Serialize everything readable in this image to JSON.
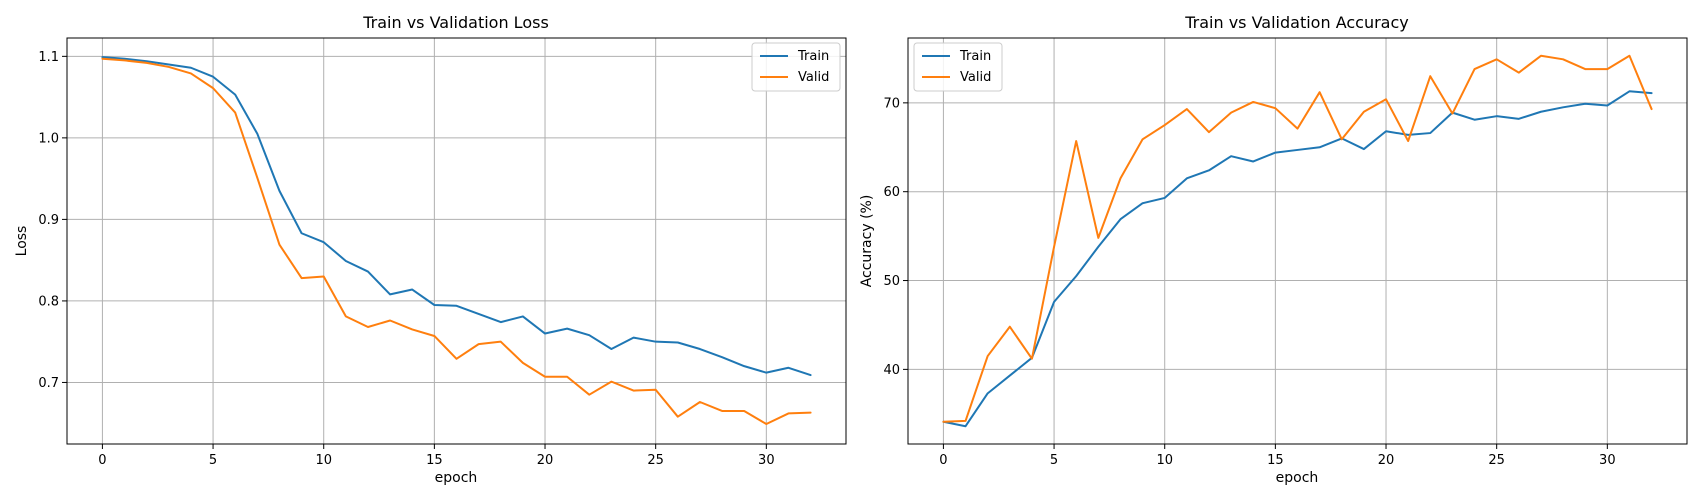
{
  "colors": {
    "train": "#1f77b4",
    "valid": "#ff7f0e",
    "grid": "#b0b0b0",
    "axis": "#000000"
  },
  "chart_data": [
    {
      "type": "line",
      "title": "Train vs Validation Loss",
      "xlabel": "epoch",
      "ylabel": "Loss",
      "xlim": [
        -1.6,
        33.6
      ],
      "ylim": [
        0.6245,
        1.1225
      ],
      "xticks": [
        0,
        5,
        10,
        15,
        20,
        25,
        30
      ],
      "yticks": [
        0.7,
        0.8,
        0.9,
        1.0,
        1.1
      ],
      "ytick_labels": [
        "0.7",
        "0.8",
        "0.9",
        "1.0",
        "1.1"
      ],
      "grid": true,
      "legend_position": "top-right",
      "x": [
        0,
        1,
        2,
        3,
        4,
        5,
        6,
        7,
        8,
        9,
        10,
        11,
        12,
        13,
        14,
        15,
        16,
        17,
        18,
        19,
        20,
        21,
        22,
        23,
        24,
        25,
        26,
        27,
        28,
        29,
        30,
        31,
        32
      ],
      "series": [
        {
          "name": "Train",
          "color_key": "train",
          "values": [
            1.099,
            1.097,
            1.094,
            1.09,
            1.086,
            1.075,
            1.053,
            1.005,
            0.935,
            0.883,
            0.872,
            0.849,
            0.836,
            0.808,
            0.814,
            0.795,
            0.794,
            0.784,
            0.774,
            0.781,
            0.76,
            0.766,
            0.758,
            0.741,
            0.755,
            0.75,
            0.749,
            0.741,
            0.731,
            0.72,
            0.712,
            0.718,
            0.709
          ]
        },
        {
          "name": "Valid",
          "color_key": "valid",
          "values": [
            1.097,
            1.095,
            1.092,
            1.087,
            1.079,
            1.061,
            1.031,
            0.951,
            0.869,
            0.828,
            0.83,
            0.781,
            0.768,
            0.776,
            0.765,
            0.757,
            0.729,
            0.747,
            0.75,
            0.724,
            0.707,
            0.707,
            0.685,
            0.701,
            0.69,
            0.691,
            0.658,
            0.676,
            0.665,
            0.665,
            0.649,
            0.662,
            0.663
          ]
        }
      ]
    },
    {
      "type": "line",
      "title": "Train vs Validation Accuracy",
      "xlabel": "epoch",
      "ylabel": "Accuracy (%)",
      "xlim": [
        -1.6,
        33.6
      ],
      "ylim": [
        31.6,
        77.3
      ],
      "xticks": [
        0,
        5,
        10,
        15,
        20,
        25,
        30
      ],
      "yticks": [
        40,
        50,
        60,
        70
      ],
      "ytick_labels": [
        "40",
        "50",
        "60",
        "70"
      ],
      "grid": true,
      "legend_position": "top-left",
      "x": [
        0,
        1,
        2,
        3,
        4,
        5,
        6,
        7,
        8,
        9,
        10,
        11,
        12,
        13,
        14,
        15,
        16,
        17,
        18,
        19,
        20,
        21,
        22,
        23,
        24,
        25,
        26,
        27,
        28,
        29,
        30,
        31,
        32
      ],
      "series": [
        {
          "name": "Train",
          "color_key": "train",
          "values": [
            34.1,
            33.6,
            37.3,
            39.3,
            41.3,
            47.6,
            50.5,
            53.8,
            56.9,
            58.7,
            59.3,
            61.5,
            62.4,
            64.0,
            63.4,
            64.4,
            64.7,
            65.0,
            66.0,
            64.8,
            66.8,
            66.4,
            66.6,
            68.9,
            68.1,
            68.5,
            68.2,
            69.0,
            69.5,
            69.9,
            69.7,
            71.3,
            71.1
          ]
        },
        {
          "name": "Valid",
          "color_key": "valid",
          "values": [
            34.1,
            34.2,
            41.5,
            44.8,
            41.2,
            53.8,
            65.7,
            54.8,
            61.5,
            65.9,
            67.5,
            69.3,
            66.7,
            68.9,
            70.1,
            69.4,
            67.1,
            71.2,
            65.9,
            69.0,
            70.4,
            65.7,
            73.0,
            68.8,
            73.8,
            74.9,
            73.4,
            75.3,
            74.9,
            73.8,
            73.8,
            75.3,
            69.3
          ]
        }
      ]
    }
  ]
}
